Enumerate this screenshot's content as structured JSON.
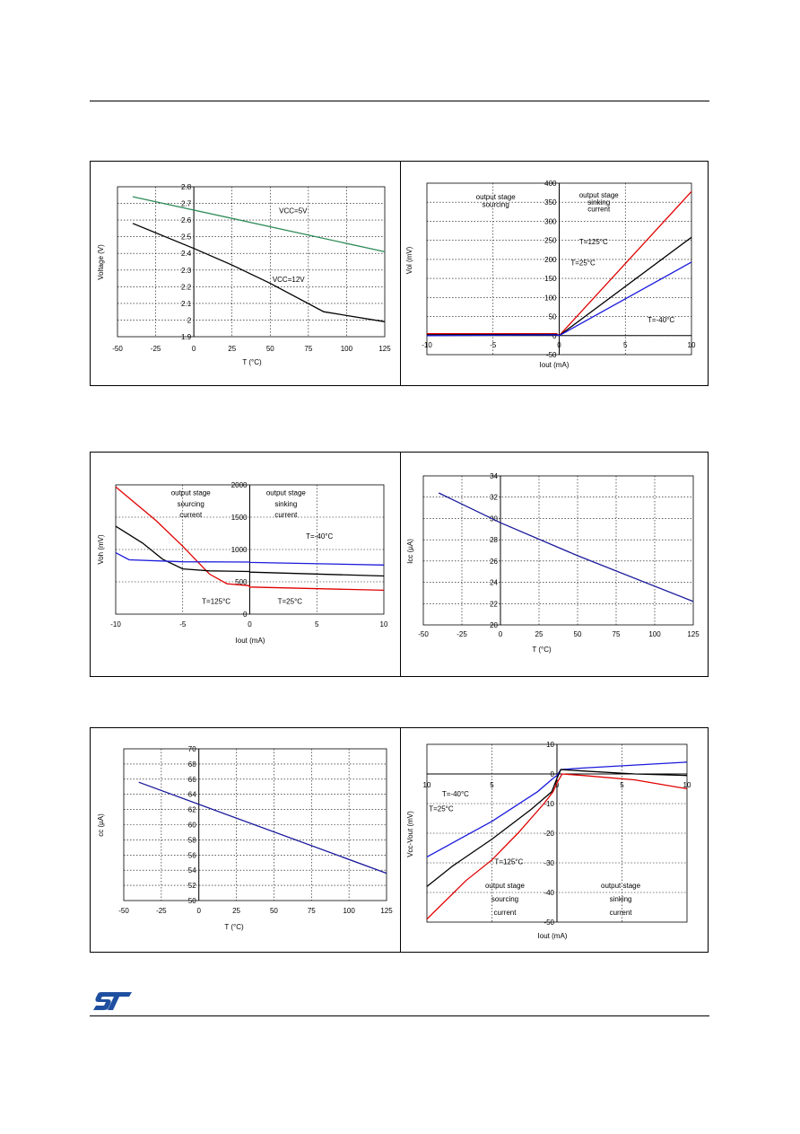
{
  "logo": {
    "name": "st-logo-icon",
    "color": "#1f4fa0"
  },
  "chart_data": [
    {
      "id": "c1",
      "type": "line",
      "xlim": [
        -50,
        125
      ],
      "ylim": [
        1.9,
        2.8
      ],
      "xticks": [
        "-50",
        "-25",
        "0",
        "25",
        "50",
        "75",
        "100",
        "125"
      ],
      "xtick_values": [
        -50,
        -25,
        0,
        25,
        50,
        75,
        100,
        125
      ],
      "yticks": [
        "1.9",
        "2",
        "2.1",
        "2.2",
        "2.3",
        "2.4",
        "2.5",
        "2.6",
        "2.7",
        "2.8"
      ],
      "ytick_values": [
        1.9,
        2,
        2.1,
        2.2,
        2.3,
        2.4,
        2.5,
        2.6,
        2.7,
        2.8
      ],
      "xlabel": "T (°C)",
      "ylabel": "Voltage (V)",
      "series": [
        {
          "name": "VCC=5V",
          "color": "#2e8b57",
          "x": [
            -40,
            125
          ],
          "y": [
            2.74,
            2.41
          ]
        },
        {
          "name": "VCC=12V",
          "color": "#000000",
          "x": [
            -40,
            0,
            25,
            50,
            85,
            125
          ],
          "y": [
            2.58,
            2.43,
            2.33,
            2.22,
            2.05,
            1.99
          ]
        }
      ],
      "annotations": [
        {
          "text": "VCC=5V",
          "x": 65,
          "y": 2.64
        },
        {
          "text": "VCC=12V",
          "x": 62,
          "y": 2.23
        }
      ]
    },
    {
      "id": "c2",
      "type": "line",
      "xlim": [
        -10,
        10
      ],
      "ylim": [
        -50,
        400
      ],
      "xticks": [
        "-10",
        "-5",
        "0",
        "5",
        "10"
      ],
      "xtick_values": [
        -10,
        -5,
        0,
        5,
        10
      ],
      "yticks": [
        "-50",
        "0",
        "50",
        "100",
        "150",
        "200",
        "250",
        "300",
        "350",
        "400"
      ],
      "ytick_values": [
        -50,
        0,
        50,
        100,
        150,
        200,
        250,
        300,
        350,
        400
      ],
      "xlabel": "Iout (mA)",
      "ylabel": "Vol (mV)",
      "series": [
        {
          "name": "T=125°C",
          "color": "#e00000",
          "x": [
            -10,
            -0.2,
            0,
            10
          ],
          "y": [
            5,
            5,
            0,
            378
          ]
        },
        {
          "name": "T=25°C",
          "color": "#000000",
          "x": [
            -10,
            -0.2,
            0,
            10
          ],
          "y": [
            2,
            3,
            0,
            258
          ]
        },
        {
          "name": "T=-40°C",
          "color": "#1a1adc",
          "x": [
            -10,
            -0.2,
            0,
            10
          ],
          "y": [
            0,
            2,
            0,
            193
          ]
        }
      ],
      "annotations": [
        {
          "text": "output stage",
          "x": -4.8,
          "y": 358
        },
        {
          "text": "sourcing",
          "x": -4.8,
          "y": 338
        },
        {
          "text": "output stage",
          "x": 3.0,
          "y": 362
        },
        {
          "text": "sinking",
          "x": 3.0,
          "y": 344
        },
        {
          "text": "current",
          "x": 3.0,
          "y": 326
        },
        {
          "text": "T=125°C",
          "x": 2.6,
          "y": 240
        },
        {
          "text": "T=25°C",
          "x": 1.8,
          "y": 185
        },
        {
          "text": "T=-40°C",
          "x": 7.7,
          "y": 35
        }
      ]
    },
    {
      "id": "c3",
      "type": "line",
      "xlim": [
        -10,
        10
      ],
      "ylim": [
        0,
        2000
      ],
      "xticks": [
        "-10",
        "-5",
        "0",
        "5",
        "10"
      ],
      "xtick_values": [
        -10,
        -5,
        0,
        5,
        10
      ],
      "yticks": [
        "0",
        "500",
        "1000",
        "1500",
        "2000"
      ],
      "ytick_values": [
        0,
        500,
        1000,
        1500,
        2000
      ],
      "xlabel": "Iout (mA)",
      "ylabel": "Voh (mV)",
      "series": [
        {
          "name": "T=125°C",
          "color": "#e00000",
          "x": [
            -10,
            -7,
            -5,
            -3,
            -1.7,
            -0.05,
            0,
            10
          ],
          "y": [
            1970,
            1450,
            1050,
            620,
            470,
            440,
            420,
            370
          ]
        },
        {
          "name": "T=25°C",
          "color": "#000000",
          "x": [
            -10,
            -8,
            -6.5,
            -5,
            -3,
            -0.05,
            0,
            10
          ],
          "y": [
            1360,
            1100,
            850,
            700,
            670,
            660,
            650,
            590
          ]
        },
        {
          "name": "T=-40°C",
          "color": "#1a1adc",
          "x": [
            -10,
            -9,
            -5,
            -0.05,
            0,
            10
          ],
          "y": [
            950,
            840,
            810,
            805,
            800,
            760
          ]
        }
      ],
      "annotations": [
        {
          "text": "output stage",
          "x": -4.4,
          "y": 1840
        },
        {
          "text": "sourcing",
          "x": -4.4,
          "y": 1670
        },
        {
          "text": "current",
          "x": -4.4,
          "y": 1500
        },
        {
          "text": "output stage",
          "x": 2.7,
          "y": 1840
        },
        {
          "text": "sinking",
          "x": 2.7,
          "y": 1670
        },
        {
          "text": "current",
          "x": 2.7,
          "y": 1500
        },
        {
          "text": "T=-40°C",
          "x": 5.2,
          "y": 1170
        },
        {
          "text": "T=125°C",
          "x": -2.5,
          "y": 160
        },
        {
          "text": "T=25°C",
          "x": 3.0,
          "y": 160
        }
      ]
    },
    {
      "id": "c4",
      "type": "line",
      "xlim": [
        -50,
        125
      ],
      "ylim": [
        20,
        34
      ],
      "xticks": [
        "-50",
        "-25",
        "0",
        "25",
        "50",
        "75",
        "100",
        "125"
      ],
      "xtick_values": [
        -50,
        -25,
        0,
        25,
        50,
        75,
        100,
        125
      ],
      "yticks": [
        "20",
        "22",
        "24",
        "26",
        "28",
        "30",
        "32",
        "34"
      ],
      "ytick_values": [
        20,
        22,
        24,
        26,
        28,
        30,
        32,
        34
      ],
      "xlabel": "T (°C)",
      "ylabel": "Icc (µA)",
      "series": [
        {
          "name": "",
          "color": "#1a1a9c",
          "x": [
            -40,
            0,
            50,
            125
          ],
          "y": [
            32.4,
            29.6,
            26.5,
            22.2
          ]
        }
      ],
      "annotations": []
    },
    {
      "id": "c5",
      "type": "line",
      "xlim": [
        -50,
        125
      ],
      "ylim": [
        50,
        70
      ],
      "xticks": [
        "-50",
        "-25",
        "0",
        "25",
        "50",
        "75",
        "100",
        "125"
      ],
      "xtick_values": [
        -50,
        -25,
        0,
        25,
        50,
        75,
        100,
        125
      ],
      "yticks": [
        "50",
        "52",
        "54",
        "56",
        "58",
        "60",
        "62",
        "64",
        "66",
        "68",
        "70"
      ],
      "ytick_values": [
        50,
        52,
        54,
        56,
        58,
        60,
        62,
        64,
        66,
        68,
        70
      ],
      "xlabel": "T (°C)",
      "ylabel": "cc (µA)",
      "series": [
        {
          "name": "",
          "color": "#1a1a9c",
          "x": [
            -40,
            125
          ],
          "y": [
            65.6,
            53.6
          ]
        }
      ],
      "annotations": []
    },
    {
      "id": "c6",
      "type": "line",
      "xlim": [
        -10,
        10
      ],
      "ylim": [
        -50,
        10
      ],
      "xticks": [
        "10",
        "5",
        "0",
        "5",
        "10"
      ],
      "xtick_values": [
        -10,
        -5,
        0,
        5,
        10
      ],
      "yticks": [
        "-50",
        "-40",
        "-30",
        "-20",
        "-10",
        "0",
        "10"
      ],
      "ytick_values": [
        -50,
        -40,
        -30,
        -20,
        -10,
        0,
        10
      ],
      "xlabel": "Iout (mA)",
      "ylabel": "Vcc-Vout (mV)",
      "series": [
        {
          "name": "T=-40°C",
          "color": "#1a1adc",
          "x": [
            -10,
            -5,
            -1.5,
            -0.3,
            0,
            0.3,
            2,
            10
          ],
          "y": [
            -28,
            -16,
            -6,
            -1.5,
            -0.5,
            1.5,
            2,
            4
          ]
        },
        {
          "name": "T=25°C",
          "color": "#000000",
          "x": [
            -10,
            -8,
            -5,
            -2,
            -0.4,
            0,
            0.3,
            2,
            6,
            10
          ],
          "y": [
            -38,
            -31,
            -22,
            -12,
            -6,
            -1.5,
            1.5,
            1,
            0,
            -0.5
          ]
        },
        {
          "name": "T=125°C",
          "color": "#e00000",
          "x": [
            -10,
            -7,
            -5,
            -3,
            -1,
            -0.3,
            0,
            0.4,
            2,
            6,
            10
          ],
          "y": [
            -49,
            -36,
            -29,
            -20,
            -10,
            -6,
            -3,
            0,
            -0.5,
            -2,
            -5
          ]
        }
      ],
      "annotations": [
        {
          "text": "T=-40°C",
          "x": -7.8,
          "y": -7.5
        },
        {
          "text": "T=25°C",
          "x": -8.9,
          "y": -12.5
        },
        {
          "text": "T=125°C",
          "x": -3.7,
          "y": -30.5
        },
        {
          "text": "output stage",
          "x": -4.0,
          "y": -38.5
        },
        {
          "text": "sourcing",
          "x": -4.0,
          "y": -43
        },
        {
          "text": "current",
          "x": -4.0,
          "y": -47.5
        },
        {
          "text": "output stage",
          "x": 4.9,
          "y": -38.5
        },
        {
          "text": "sinking",
          "x": 4.9,
          "y": -43
        },
        {
          "text": "current",
          "x": 4.9,
          "y": -47.5
        }
      ]
    }
  ]
}
